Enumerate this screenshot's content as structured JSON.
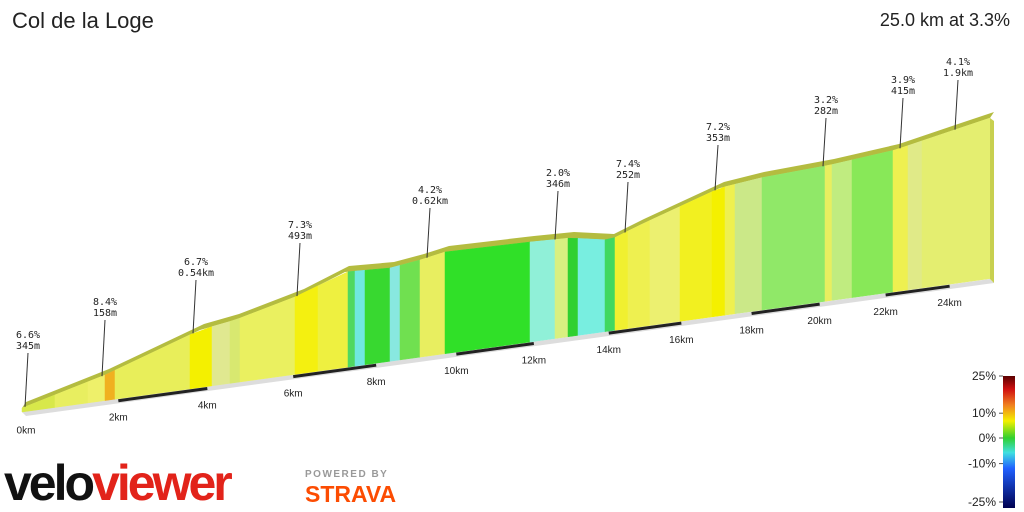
{
  "chart_data": {
    "type": "elevation-profile",
    "title": "Col de la Loge",
    "summary": "25.0 km at 3.3%",
    "xticks": [
      {
        "value": 0,
        "label": "0km"
      },
      {
        "value": 2,
        "label": "2km"
      },
      {
        "value": 4,
        "label": "4km"
      },
      {
        "value": 6,
        "label": "6km"
      },
      {
        "value": 8,
        "label": "8km"
      },
      {
        "value": 10,
        "label": "10km"
      },
      {
        "value": 12,
        "label": "12km"
      },
      {
        "value": 14,
        "label": "14km"
      },
      {
        "value": 16,
        "label": "16km"
      },
      {
        "value": 18,
        "label": "18km"
      },
      {
        "value": 20,
        "label": "20km"
      },
      {
        "value": 22,
        "label": "22km"
      },
      {
        "value": 24,
        "label": "24km"
      }
    ],
    "annotations": [
      {
        "grade": "6.6%",
        "distance": "345m"
      },
      {
        "grade": "8.4%",
        "distance": "158m"
      },
      {
        "grade": "6.7%",
        "distance": "0.54km"
      },
      {
        "grade": "7.3%",
        "distance": "493m"
      },
      {
        "grade": "4.2%",
        "distance": "0.62km"
      },
      {
        "grade": "2.0%",
        "distance": "346m"
      },
      {
        "grade": "7.4%",
        "distance": "252m"
      },
      {
        "grade": "7.2%",
        "distance": "353m"
      },
      {
        "grade": "3.2%",
        "distance": "282m"
      },
      {
        "grade": "3.9%",
        "distance": "415m"
      },
      {
        "grade": "4.1%",
        "distance": "1.9km"
      }
    ],
    "color_scale": {
      "ticks": [
        {
          "value": 25,
          "label": "25%"
        },
        {
          "value": 10,
          "label": "10%"
        },
        {
          "value": 0,
          "label": "0%"
        },
        {
          "value": -10,
          "label": "-10%"
        },
        {
          "value": -25,
          "label": "-25%"
        }
      ]
    },
    "logo": {
      "velo": "velo",
      "viewer": "viewer",
      "powered": "POWERED BY",
      "strava": "STRAVA"
    }
  }
}
